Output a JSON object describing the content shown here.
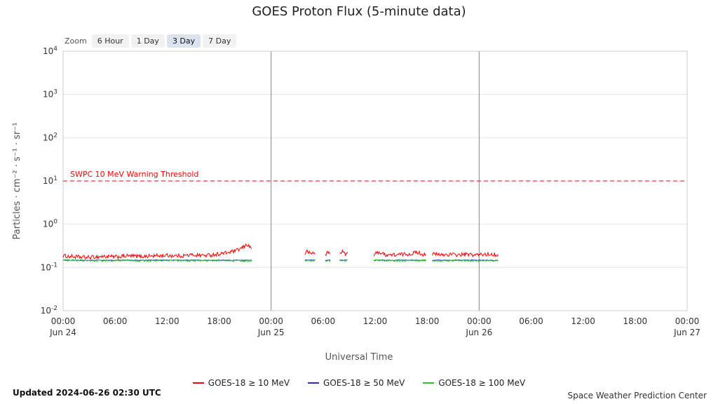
{
  "title": "GOES Proton Flux (5-minute data)",
  "range_selector": {
    "label": "Zoom",
    "buttons": [
      {
        "label": "6 Hour",
        "selected": false
      },
      {
        "label": "1 Day",
        "selected": false
      },
      {
        "label": "3 Day",
        "selected": true
      },
      {
        "label": "7 Day",
        "selected": false
      }
    ]
  },
  "footer": {
    "updated": "Updated 2024-06-26 02:30 UTC",
    "credit": "Space Weather Prediction Center"
  },
  "chart_data": {
    "type": "line",
    "title": "GOES Proton Flux (5-minute data)",
    "xlabel": "Universal Time",
    "ylabel": "Particles · cm⁻² · s⁻¹ · sr⁻¹",
    "x_unit": "hours since Jun 24 00:00 UTC",
    "x_range": [
      0,
      72
    ],
    "y_scale": "log10",
    "ylim": [
      0.01,
      10000
    ],
    "y_tick_exponents": [
      4,
      3,
      2,
      1,
      0,
      -1,
      -2
    ],
    "x_ticks": [
      {
        "hour": 0,
        "time": "00:00",
        "date": "Jun 24"
      },
      {
        "hour": 6,
        "time": "06:00"
      },
      {
        "hour": 12,
        "time": "12:00"
      },
      {
        "hour": 18,
        "time": "18:00"
      },
      {
        "hour": 24,
        "time": "00:00",
        "date": "Jun 25"
      },
      {
        "hour": 30,
        "time": "06:00"
      },
      {
        "hour": 36,
        "time": "12:00"
      },
      {
        "hour": 42,
        "time": "18:00"
      },
      {
        "hour": 48,
        "time": "00:00",
        "date": "Jun 26"
      },
      {
        "hour": 54,
        "time": "06:00"
      },
      {
        "hour": 60,
        "time": "12:00"
      },
      {
        "hour": 66,
        "time": "18:00"
      },
      {
        "hour": 72,
        "time": "00:00",
        "date": "Jun 27"
      }
    ],
    "grid": "horizontal",
    "legend_position": "bottom",
    "day_separators_hours": [
      24,
      48
    ],
    "threshold": {
      "label": "SWPC 10 MeV Warning Threshold",
      "value": 10,
      "color": "#ff0000"
    },
    "series": [
      {
        "name": "GOES-18 ≥ 10 MeV",
        "slug": "goes-18-10-mev",
        "color": "#ff0000",
        "noise_log10": 0.045,
        "segments": [
          {
            "points": [
              [
                0,
                0.185
              ],
              [
                1.5,
                0.175
              ],
              [
                3,
                0.17
              ],
              [
                4.5,
                0.18
              ],
              [
                6,
                0.175
              ],
              [
                7.5,
                0.185
              ],
              [
                9,
                0.18
              ],
              [
                10.5,
                0.185
              ],
              [
                12,
                0.19
              ],
              [
                13.5,
                0.185
              ],
              [
                15,
                0.195
              ],
              [
                16.5,
                0.19
              ],
              [
                18,
                0.205
              ],
              [
                19,
                0.22
              ],
              [
                20,
                0.245
              ],
              [
                20.6,
                0.28
              ],
              [
                21,
                0.315
              ],
              [
                21.25,
                0.345
              ],
              [
                21.5,
                0.3
              ],
              [
                21.8,
                0.285
              ]
            ]
          },
          {
            "points": [
              [
                27.9,
                0.205
              ],
              [
                28.2,
                0.24
              ],
              [
                28.5,
                0.205
              ],
              [
                28.8,
                0.22
              ],
              [
                29.1,
                0.205
              ]
            ]
          },
          {
            "points": [
              [
                30.25,
                0.2
              ],
              [
                30.55,
                0.225
              ],
              [
                30.9,
                0.205
              ]
            ]
          },
          {
            "points": [
              [
                31.9,
                0.21
              ],
              [
                32.2,
                0.245
              ],
              [
                32.5,
                0.205
              ],
              [
                32.85,
                0.21
              ]
            ]
          },
          {
            "points": [
              [
                35.85,
                0.195
              ],
              [
                36.4,
                0.23
              ],
              [
                37,
                0.2
              ],
              [
                38,
                0.195
              ],
              [
                39,
                0.2
              ],
              [
                40,
                0.205
              ],
              [
                40.9,
                0.225
              ],
              [
                41.5,
                0.2
              ],
              [
                41.9,
                0.21
              ]
            ]
          },
          {
            "points": [
              [
                42.6,
                0.205
              ],
              [
                43.5,
                0.195
              ],
              [
                44.5,
                0.2
              ],
              [
                45.5,
                0.195
              ],
              [
                46.5,
                0.2
              ],
              [
                47.5,
                0.195
              ],
              [
                48.5,
                0.2
              ],
              [
                49.3,
                0.205
              ],
              [
                50.25,
                0.195
              ]
            ]
          }
        ]
      },
      {
        "name": "GOES-18 ≥ 50 MeV",
        "slug": "goes-18-50-mev",
        "color": "#2c2cc8",
        "noise_log10": 0.01,
        "segments": [
          {
            "points": [
              [
                0,
                0.147
              ],
              [
                6,
                0.146
              ],
              [
                12,
                0.148
              ],
              [
                18,
                0.146
              ],
              [
                21.8,
                0.147
              ]
            ]
          },
          {
            "points": [
              [
                27.9,
                0.147
              ],
              [
                29.1,
                0.147
              ]
            ]
          },
          {
            "points": [
              [
                30.25,
                0.146
              ],
              [
                30.9,
                0.147
              ]
            ]
          },
          {
            "points": [
              [
                31.9,
                0.147
              ],
              [
                32.85,
                0.146
              ]
            ]
          },
          {
            "points": [
              [
                35.85,
                0.147
              ],
              [
                38,
                0.146
              ],
              [
                40,
                0.148
              ],
              [
                41.9,
                0.146
              ]
            ]
          },
          {
            "points": [
              [
                42.6,
                0.147
              ],
              [
                45,
                0.146
              ],
              [
                47,
                0.148
              ],
              [
                49,
                0.146
              ],
              [
                50.25,
                0.147
              ]
            ]
          }
        ]
      },
      {
        "name": "GOES-18 ≥ 100 MeV",
        "slug": "goes-18-100-mev",
        "color": "#22cc22",
        "noise_log10": 0.022,
        "segments": [
          {
            "points": [
              [
                0,
                0.147
              ],
              [
                3,
                0.144
              ],
              [
                6,
                0.146
              ],
              [
                9,
                0.143
              ],
              [
                12,
                0.145
              ],
              [
                15,
                0.144
              ],
              [
                18,
                0.146
              ],
              [
                19.5,
                0.143
              ],
              [
                21,
                0.141
              ],
              [
                21.8,
                0.144
              ]
            ]
          },
          {
            "points": [
              [
                27.9,
                0.146
              ],
              [
                28.5,
                0.143
              ],
              [
                29.1,
                0.145
              ]
            ]
          },
          {
            "points": [
              [
                30.25,
                0.144
              ],
              [
                30.9,
                0.145
              ]
            ]
          },
          {
            "points": [
              [
                31.9,
                0.145
              ],
              [
                32.4,
                0.143
              ],
              [
                32.85,
                0.145
              ]
            ]
          },
          {
            "points": [
              [
                35.85,
                0.145
              ],
              [
                37,
                0.147
              ],
              [
                38.5,
                0.143
              ],
              [
                40,
                0.146
              ],
              [
                41,
                0.144
              ],
              [
                41.9,
                0.145
              ]
            ]
          },
          {
            "points": [
              [
                42.6,
                0.145
              ],
              [
                44,
                0.143
              ],
              [
                45.5,
                0.146
              ],
              [
                47,
                0.143
              ],
              [
                48.5,
                0.145
              ],
              [
                49.5,
                0.143
              ],
              [
                50.25,
                0.145
              ]
            ]
          }
        ]
      }
    ]
  }
}
